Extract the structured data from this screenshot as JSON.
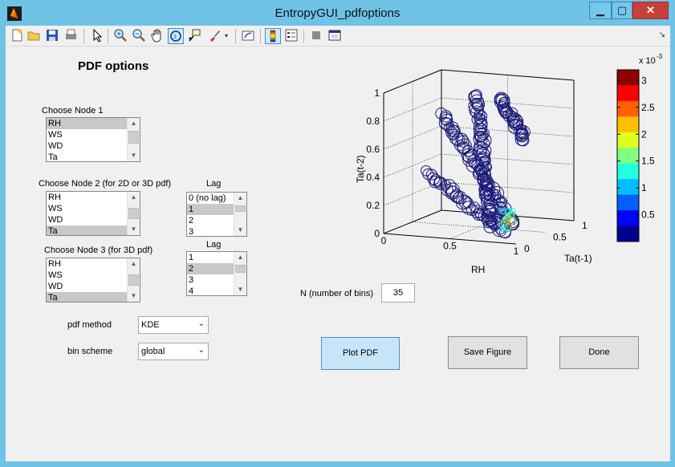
{
  "window": {
    "title": "EntropyGUI_pdfoptions",
    "min": "▁",
    "max": "▢",
    "close": "✕"
  },
  "toolbar": {
    "icons": [
      "new-figure-icon",
      "open-file-icon",
      "save-icon",
      "print-icon",
      "pointer-icon",
      "zoom-in-icon",
      "zoom-out-icon",
      "pan-icon",
      "rotate-3d-icon",
      "data-cursor-icon",
      "brush-icon",
      "link-plot-icon",
      "colorbar-icon",
      "legend-icon",
      "hide-plot-tools-icon",
      "show-plot-tools-icon"
    ],
    "corner": "↘"
  },
  "panel": {
    "title": "PDF options"
  },
  "node1": {
    "label": "Choose Node 1",
    "items": [
      "RH",
      "WS",
      "WD",
      "Ta"
    ],
    "selected": 0
  },
  "node2": {
    "label": "Choose Node  2 (for 2D or 3D pdf)",
    "items": [
      "RH",
      "WS",
      "WD",
      "Ta"
    ],
    "selected": 3
  },
  "node3": {
    "label": "Choose Node 3 (for 3D pdf)",
    "items": [
      "RH",
      "WS",
      "WD",
      "Ta"
    ],
    "selected": 3
  },
  "lag2": {
    "label": "Lag",
    "items": [
      "0 (no lag)",
      "1",
      "2",
      "3"
    ],
    "selected": 1
  },
  "lag3": {
    "label": "Lag",
    "items": [
      "1",
      "2",
      "3",
      "4"
    ],
    "selected": 1
  },
  "pdf_method": {
    "label": "pdf method",
    "value": "KDE"
  },
  "bin_scheme": {
    "label": "bin scheme",
    "value": "global"
  },
  "bins": {
    "label": "N (number of bins)",
    "value": "35"
  },
  "buttons": {
    "plot": "Plot PDF",
    "save": "Save Figure",
    "done": "Done"
  },
  "chart_data": {
    "type": "scatter",
    "title": "",
    "xlabel": "RH",
    "ylabel": "Ta(t-1)",
    "zlabel": "Ta(t-2)",
    "x_ticks": [
      "0",
      "0.5",
      "1"
    ],
    "y_ticks": [
      "0",
      "0.5",
      "1"
    ],
    "z_ticks": [
      "0",
      "0.2",
      "0.4",
      "0.6",
      "0.8",
      "1"
    ],
    "xlim": [
      0,
      1
    ],
    "ylim": [
      0,
      1
    ],
    "zlim": [
      0,
      1
    ],
    "grid": true,
    "colorbar": {
      "exponent": "x 10",
      "power": "-3",
      "ticks": [
        "0.5",
        "1",
        "1.5",
        "2",
        "2.5",
        "3"
      ],
      "range": [
        0.0,
        3.2
      ],
      "colors": [
        "#00008f",
        "#0000ff",
        "#0060ff",
        "#00bfff",
        "#20ffdf",
        "#80ff80",
        "#dfff20",
        "#ffbf00",
        "#ff6000",
        "#ff0000",
        "#8f0000"
      ]
    }
  }
}
